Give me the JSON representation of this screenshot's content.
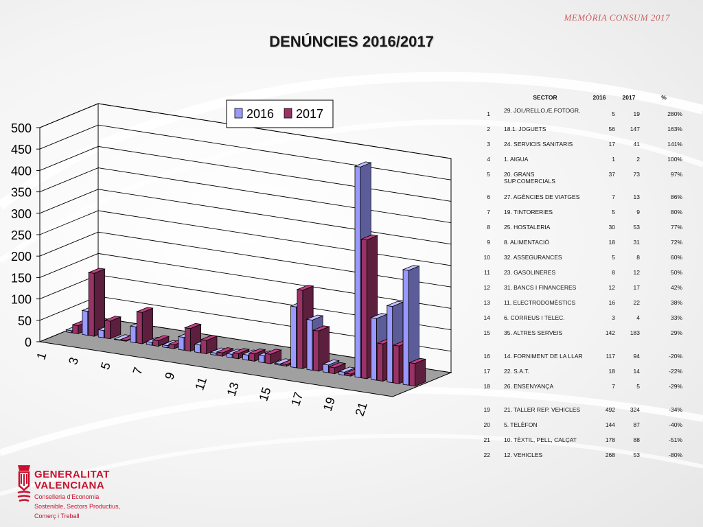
{
  "header": {
    "note": "MEMÒRIA CONSUM 2017"
  },
  "title": "DENÚNCIES 2016/2017",
  "colors": {
    "series_2016": "#9999ff",
    "series_2017": "#993366",
    "title_red": "#c8102e"
  },
  "chart_data": {
    "type": "bar",
    "categories": [
      "1",
      "2",
      "3",
      "4",
      "5",
      "6",
      "7",
      "8",
      "9",
      "10",
      "11",
      "12",
      "13",
      "14",
      "15",
      "16",
      "17",
      "18",
      "19",
      "20",
      "21",
      "22"
    ],
    "x_tick_labels": [
      "1",
      "3",
      "5",
      "7",
      "9",
      "11",
      "13",
      "15",
      "17",
      "19",
      "21"
    ],
    "series": [
      {
        "name": "2016",
        "values": [
          5,
          56,
          17,
          1,
          37,
          7,
          5,
          30,
          18,
          5,
          8,
          12,
          16,
          3,
          142,
          117,
          18,
          7,
          492,
          144,
          178,
          268
        ]
      },
      {
        "name": "2017",
        "values": [
          19,
          147,
          41,
          2,
          73,
          13,
          9,
          53,
          31,
          8,
          12,
          17,
          22,
          4,
          183,
          94,
          14,
          5,
          324,
          87,
          88,
          53
        ]
      }
    ],
    "y_tick_labels": [
      "0",
      "50",
      "100",
      "150",
      "200",
      "250",
      "300",
      "350",
      "400",
      "450",
      "500"
    ],
    "ylim": [
      0,
      500
    ],
    "grid": true,
    "legend": "top",
    "style": "3d-clustered"
  },
  "table": {
    "headers": {
      "sector": "SECTOR",
      "y2016": "2016",
      "y2017": "2017",
      "pct": "%"
    },
    "rows": [
      {
        "n": "1",
        "sector": "29. JOI./RELLO./E.FOTOGR.",
        "y2016": "5",
        "y2017": "19",
        "pct": "280%"
      },
      {
        "n": "2",
        "sector": "18.1. JOGUETS",
        "y2016": "56",
        "y2017": "147",
        "pct": "163%"
      },
      {
        "n": "3",
        "sector": "24. SERVICIS SANITARIS",
        "y2016": "17",
        "y2017": "41",
        "pct": "141%"
      },
      {
        "n": "4",
        "sector": "1. AIGUA",
        "y2016": "1",
        "y2017": "2",
        "pct": "100%"
      },
      {
        "n": "5",
        "sector": "20. GRANS SUP.COMERCIALS",
        "y2016": "37",
        "y2017": "73",
        "pct": "97%"
      },
      {
        "n": "6",
        "sector": "27. AGÈNCIES DE VIATGES",
        "y2016": "7",
        "y2017": "13",
        "pct": "86%"
      },
      {
        "n": "7",
        "sector": "19. TINTORERIES",
        "y2016": "5",
        "y2017": "9",
        "pct": "80%"
      },
      {
        "n": "8",
        "sector": "25. HOSTALERIA",
        "y2016": "30",
        "y2017": "53",
        "pct": "77%"
      },
      {
        "n": "9",
        "sector": "8. ALIMENTACIÓ",
        "y2016": "18",
        "y2017": "31",
        "pct": "72%"
      },
      {
        "n": "10",
        "sector": "32. ASSEGURANCES",
        "y2016": "5",
        "y2017": "8",
        "pct": "60%"
      },
      {
        "n": "11",
        "sector": "23. GASOLINERES",
        "y2016": "8",
        "y2017": "12",
        "pct": "50%"
      },
      {
        "n": "12",
        "sector": "31. BANCS I FINANCERES",
        "y2016": "12",
        "y2017": "17",
        "pct": "42%"
      },
      {
        "n": "13",
        "sector": "11. ELECTRODOMÈSTICS",
        "y2016": "16",
        "y2017": "22",
        "pct": "38%"
      },
      {
        "n": "14",
        "sector": "6. CORREUS I TELEC.",
        "y2016": "3",
        "y2017": "4",
        "pct": "33%"
      },
      {
        "n": "15",
        "sector": "35. ALTRES SERVEIS",
        "y2016": "142",
        "y2017": "183",
        "pct": "29%"
      },
      {
        "n": "16",
        "sector": "14. FORNIMENT DE LA LLAR",
        "y2016": "117",
        "y2017": "94",
        "pct": "-20%"
      },
      {
        "n": "17",
        "sector": "22. S.A.T.",
        "y2016": "18",
        "y2017": "14",
        "pct": "-22%"
      },
      {
        "n": "18",
        "sector": "26. ENSENYANÇA",
        "y2016": "7",
        "y2017": "5",
        "pct": "-29%"
      },
      {
        "n": "19",
        "sector": "21. TALLER REP. VEHICLES",
        "y2016": "492",
        "y2017": "324",
        "pct": "-34%"
      },
      {
        "n": "20",
        "sector": "5. TELÈFON",
        "y2016": "144",
        "y2017": "87",
        "pct": "-40%"
      },
      {
        "n": "21",
        "sector": "10. TÈXTIL, PELL, CALÇAT",
        "y2016": "178",
        "y2017": "88",
        "pct": "-51%"
      },
      {
        "n": "22",
        "sector": "12. VEHICLES",
        "y2016": "268",
        "y2017": "53",
        "pct": "-80%"
      }
    ]
  },
  "logo": {
    "icon": "generalitat-emblem-icon",
    "name_line1": "GENERALITAT",
    "name_line2": "VALENCIANA",
    "sub_line1": "Conselleria d'Economia",
    "sub_line2": "Sostenible, Sectors Productius,",
    "sub_line3": "Comerç i Treball"
  }
}
